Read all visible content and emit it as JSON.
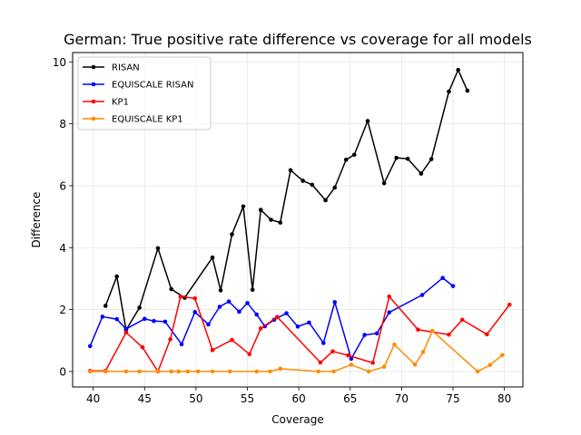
{
  "chart_data": {
    "type": "line",
    "title": "German: True positive rate difference vs coverage for all models",
    "xlabel": "Coverage",
    "ylabel": "Difference",
    "xlim": [
      38,
      81.8
    ],
    "ylim": [
      -0.5,
      10.3
    ],
    "xticks": [
      40,
      45,
      50,
      55,
      60,
      65,
      70,
      75,
      80
    ],
    "yticks": [
      0,
      2,
      4,
      6,
      8,
      10
    ],
    "grid": true,
    "legend_position": "upper-left",
    "series": [
      {
        "name": "RISAN",
        "color": "#000000",
        "x": [
          41.2,
          42.3,
          43.2,
          44.5,
          46.3,
          47.6,
          48.9,
          51.6,
          52.4,
          53.5,
          54.6,
          55.5,
          56.3,
          57.3,
          58.2,
          59.2,
          60.4,
          61.3,
          62.6,
          63.5,
          64.6,
          65.4,
          66.7,
          68.3,
          69.5,
          70.6,
          71.9,
          72.9,
          74.6,
          75.5,
          76.4
        ],
        "y": [
          2.12,
          3.07,
          1.34,
          2.06,
          3.98,
          2.66,
          2.38,
          3.68,
          2.62,
          4.43,
          5.33,
          2.64,
          5.22,
          4.9,
          4.81,
          6.5,
          6.16,
          6.03,
          5.53,
          5.94,
          6.84,
          7.0,
          8.09,
          6.08,
          6.9,
          6.87,
          6.39,
          6.86,
          9.04,
          9.74,
          9.07
        ]
      },
      {
        "name": "EQUISCALE RISAN",
        "color": "#0000ff",
        "x": [
          39.7,
          40.9,
          42.3,
          43.2,
          45.0,
          45.9,
          47.0,
          48.6,
          49.9,
          51.2,
          52.3,
          53.2,
          54.2,
          55.0,
          55.9,
          56.7,
          57.6,
          58.8,
          59.9,
          61.0,
          62.4,
          63.5,
          65.1,
          66.4,
          67.6,
          68.8,
          72.0,
          74.0,
          75.0
        ],
        "y": [
          0.82,
          1.77,
          1.69,
          1.37,
          1.7,
          1.63,
          1.61,
          0.88,
          1.92,
          1.52,
          2.09,
          2.26,
          1.93,
          2.21,
          1.84,
          1.46,
          1.67,
          1.88,
          1.45,
          1.58,
          0.92,
          2.24,
          0.41,
          1.18,
          1.23,
          1.91,
          2.47,
          3.02,
          2.76
        ]
      },
      {
        "name": "KP1",
        "color": "#ff0000",
        "x": [
          39.7,
          41.2,
          43.2,
          44.8,
          46.3,
          47.5,
          48.5,
          49.9,
          51.6,
          53.5,
          55.2,
          56.3,
          57.9,
          62.1,
          63.3,
          64.8,
          67.2,
          68.8,
          71.6,
          74.6,
          75.9,
          78.3,
          80.5
        ],
        "y": [
          0.02,
          0.02,
          1.26,
          0.78,
          0.0,
          1.04,
          2.42,
          2.36,
          0.69,
          1.02,
          0.56,
          1.39,
          1.76,
          0.29,
          0.65,
          0.52,
          0.28,
          2.42,
          1.35,
          1.19,
          1.67,
          1.2,
          2.16
        ]
      },
      {
        "name": "EQUISCALE KP1",
        "color": "#ff8c00",
        "x": [
          39.7,
          41.2,
          43.2,
          44.5,
          46.3,
          47.6,
          48.3,
          49.2,
          50.2,
          51.6,
          53.3,
          55.9,
          57.2,
          58.2,
          61.9,
          63.4,
          65.1,
          66.8,
          68.3,
          69.3,
          71.3,
          72.1,
          73.0,
          77.4,
          78.6,
          79.8
        ],
        "y": [
          0.0,
          0.0,
          0.0,
          0.0,
          0.0,
          0.0,
          0.0,
          0.0,
          0.0,
          0.0,
          0.0,
          0.0,
          0.0,
          0.09,
          0.0,
          0.0,
          0.22,
          0.0,
          0.15,
          0.87,
          0.22,
          0.63,
          1.31,
          0.0,
          0.21,
          0.53
        ]
      }
    ]
  }
}
